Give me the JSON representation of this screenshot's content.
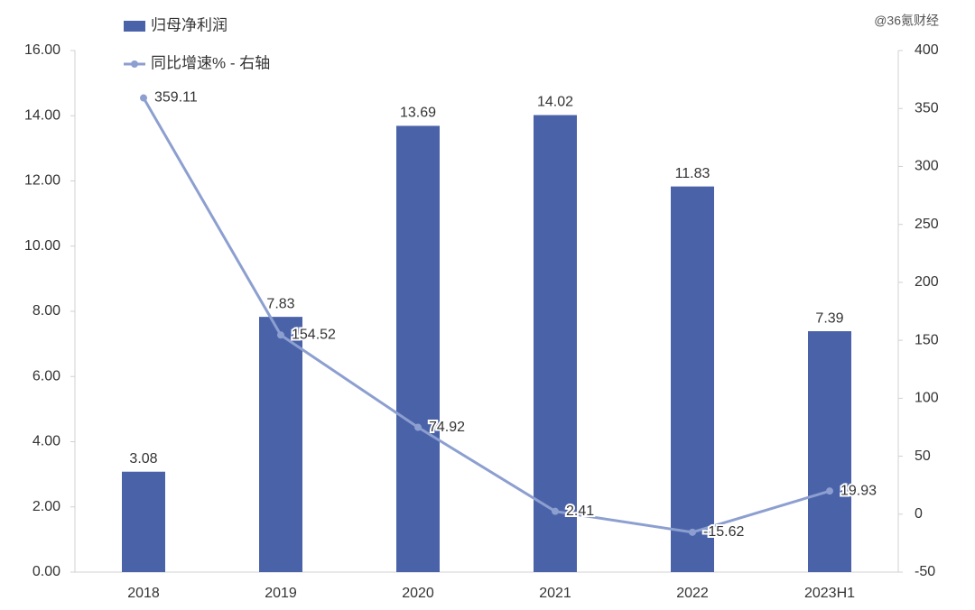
{
  "chart_data": {
    "type": "bar_line",
    "watermark": "@36氪财经",
    "categories": [
      "2018",
      "2019",
      "2020",
      "2021",
      "2022",
      "2023H1"
    ],
    "series": [
      {
        "name": "归母净利润",
        "type": "bar",
        "color": "#4a62a8",
        "values": [
          3.08,
          7.83,
          13.69,
          14.02,
          11.83,
          7.39
        ]
      },
      {
        "name": "同比增速% - 右轴",
        "type": "line",
        "axis": "y2",
        "color": "#8c9fd0",
        "values": [
          359.11,
          154.52,
          74.92,
          2.41,
          -15.62,
          19.93
        ]
      }
    ],
    "ylim": [
      0,
      16
    ],
    "yticks": [
      {
        "value": 0,
        "label": "0.00"
      },
      {
        "value": 2,
        "label": "2.00"
      },
      {
        "value": 4,
        "label": "4.00"
      },
      {
        "value": 6,
        "label": "6.00"
      },
      {
        "value": 8,
        "label": "8.00"
      },
      {
        "value": 10,
        "label": "10.00"
      },
      {
        "value": 12,
        "label": "12.00"
      },
      {
        "value": 14,
        "label": "14.00"
      },
      {
        "value": 16,
        "label": "16.00"
      }
    ],
    "y2lim": [
      -50,
      400
    ],
    "y2ticks": [
      -50,
      0,
      50,
      100,
      150,
      200,
      250,
      300,
      350,
      400
    ],
    "grid": false,
    "legend": "top-left"
  }
}
